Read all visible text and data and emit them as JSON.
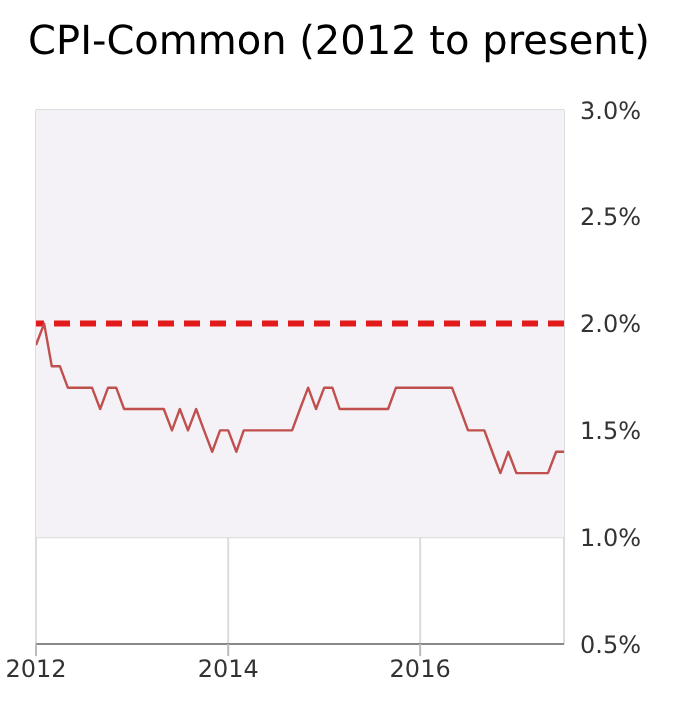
{
  "chart_data": {
    "type": "line",
    "title": "CPI-Common (2012 to present)",
    "x": [
      "2012-01",
      "2012-02",
      "2012-03",
      "2012-04",
      "2012-05",
      "2012-06",
      "2012-07",
      "2012-08",
      "2012-09",
      "2012-10",
      "2012-11",
      "2012-12",
      "2013-01",
      "2013-02",
      "2013-03",
      "2013-04",
      "2013-05",
      "2013-06",
      "2013-07",
      "2013-08",
      "2013-09",
      "2013-10",
      "2013-11",
      "2013-12",
      "2014-01",
      "2014-02",
      "2014-03",
      "2014-04",
      "2014-05",
      "2014-06",
      "2014-07",
      "2014-08",
      "2014-09",
      "2014-10",
      "2014-11",
      "2014-12",
      "2015-01",
      "2015-02",
      "2015-03",
      "2015-04",
      "2015-05",
      "2015-06",
      "2015-07",
      "2015-08",
      "2015-09",
      "2015-10",
      "2015-11",
      "2015-12",
      "2016-01",
      "2016-02",
      "2016-03",
      "2016-04",
      "2016-05",
      "2016-06",
      "2016-07",
      "2016-08",
      "2016-09",
      "2016-10",
      "2016-11",
      "2016-12",
      "2017-01",
      "2017-02",
      "2017-03",
      "2017-04",
      "2017-05",
      "2017-06",
      "2017-07"
    ],
    "series": [
      {
        "color": "#c0504d",
        "values": [
          1.9,
          2.0,
          1.8,
          1.8,
          1.7,
          1.7,
          1.7,
          1.7,
          1.6,
          1.7,
          1.7,
          1.6,
          1.6,
          1.6,
          1.6,
          1.6,
          1.6,
          1.5,
          1.6,
          1.5,
          1.6,
          1.5,
          1.4,
          1.5,
          1.5,
          1.4,
          1.5,
          1.5,
          1.5,
          1.5,
          1.5,
          1.5,
          1.5,
          1.6,
          1.7,
          1.6,
          1.7,
          1.7,
          1.6,
          1.6,
          1.6,
          1.6,
          1.6,
          1.6,
          1.6,
          1.7,
          1.7,
          1.7,
          1.7,
          1.7,
          1.7,
          1.7,
          1.7,
          1.6,
          1.5,
          1.5,
          1.5,
          1.4,
          1.3,
          1.4,
          1.3,
          1.3,
          1.3,
          1.3,
          1.3,
          1.4,
          1.4
        ]
      }
    ],
    "xlim": [
      "2012-01",
      "2017-07"
    ],
    "xticks": [
      "2012",
      "2014",
      "2016"
    ],
    "ylim": [
      0.5,
      3.0
    ],
    "yticks": [
      {
        "value": 0.5,
        "label": "0.5%"
      },
      {
        "value": 1.0,
        "label": "1.0%"
      },
      {
        "value": 1.5,
        "label": "1.5%"
      },
      {
        "value": 2.0,
        "label": "2.0%"
      },
      {
        "value": 2.5,
        "label": "2.5%"
      },
      {
        "value": 3.0,
        "label": "3.0%"
      }
    ],
    "ref_lines": [
      {
        "axis": "y",
        "value": 2.0,
        "color": "#e31a1c",
        "line_style": "dashed"
      }
    ],
    "bands": [
      {
        "axis": "y",
        "from": 1.0,
        "to": 3.0,
        "color": "#f4f2f6"
      }
    ],
    "grid": true,
    "marker": "none",
    "line_style": "solid"
  }
}
